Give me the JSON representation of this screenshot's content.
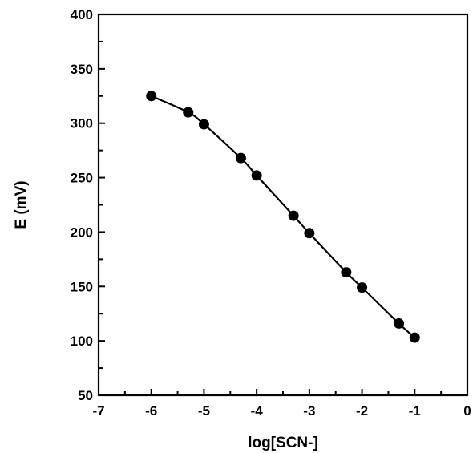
{
  "chart_data": {
    "type": "line",
    "title": "",
    "xlabel": "log[SCN-]",
    "ylabel": "E (mV)",
    "xlim": [
      -7,
      0
    ],
    "ylim": [
      50,
      400
    ],
    "xticks": [
      -7,
      -6,
      -5,
      -4,
      -3,
      -2,
      -1,
      0
    ],
    "yticks": [
      50,
      100,
      150,
      200,
      250,
      300,
      350,
      400
    ],
    "xtick_labels": [
      "-7",
      "-6",
      "-5",
      "-4",
      "-3",
      "-2",
      "-1",
      "0"
    ],
    "ytick_labels": [
      "50",
      "100",
      "150",
      "200",
      "250",
      "300",
      "350",
      "400"
    ],
    "grid": false,
    "legend": "none",
    "series": [
      {
        "marker": "filled-circle",
        "color": "#000000",
        "x": [
          -6.0,
          -5.3,
          -5.0,
          -4.3,
          -4.0,
          -3.3,
          -3.0,
          -2.3,
          -2.0,
          -1.3,
          -1.0
        ],
        "y": [
          325,
          310,
          299,
          268,
          252,
          215,
          199,
          163,
          149,
          116,
          103
        ]
      }
    ]
  }
}
